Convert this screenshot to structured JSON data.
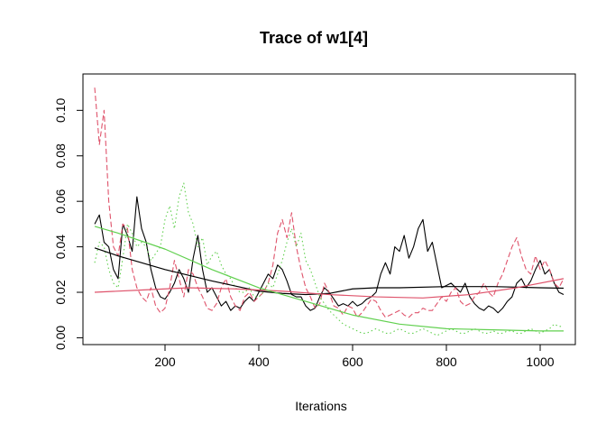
{
  "chart_data": {
    "type": "line",
    "title": "Trace of w1[4]",
    "xlabel": "Iterations",
    "ylabel": "",
    "xlim": [
      25,
      1075
    ],
    "ylim": [
      -0.003,
      0.116
    ],
    "xticks": [
      200,
      400,
      600,
      800,
      1000
    ],
    "xtick_labels": [
      "200",
      "400",
      "600",
      "800",
      "1000"
    ],
    "yticks": [
      0.0,
      0.02,
      0.04,
      0.06,
      0.08,
      0.1
    ],
    "ytick_labels": [
      "0.00",
      "0.02",
      "0.04",
      "0.06",
      "0.08",
      "0.10"
    ],
    "grid": false,
    "legend": "none",
    "colors": {
      "chain1": "#000000",
      "chain2": "#DF536B",
      "chain3": "#61D04F"
    },
    "series": [
      {
        "color": "#000000",
        "style": "solid",
        "x": [
          50,
          60,
          70,
          80,
          90,
          100,
          110,
          120,
          130,
          140,
          150,
          160,
          170,
          180,
          190,
          200,
          210,
          220,
          230,
          240,
          250,
          260,
          270,
          280,
          290,
          300,
          310,
          320,
          330,
          340,
          350,
          360,
          370,
          380,
          390,
          400,
          410,
          420,
          430,
          440,
          450,
          460,
          470,
          480,
          490,
          500,
          510,
          520,
          530,
          540,
          550,
          560,
          570,
          580,
          590,
          600,
          610,
          620,
          630,
          640,
          650,
          660,
          670,
          680,
          690,
          700,
          710,
          720,
          730,
          740,
          750,
          760,
          770,
          780,
          790,
          800,
          810,
          820,
          830,
          840,
          850,
          860,
          870,
          880,
          890,
          900,
          910,
          920,
          930,
          940,
          950,
          960,
          970,
          980,
          990,
          1000,
          1010,
          1020,
          1030,
          1040,
          1050
        ],
        "y": [
          0.05,
          0.054,
          0.042,
          0.04,
          0.03,
          0.026,
          0.05,
          0.045,
          0.038,
          0.062,
          0.048,
          0.042,
          0.03,
          0.022,
          0.018,
          0.017,
          0.02,
          0.024,
          0.03,
          0.026,
          0.02,
          0.035,
          0.045,
          0.03,
          0.02,
          0.022,
          0.018,
          0.014,
          0.016,
          0.012,
          0.014,
          0.013,
          0.016,
          0.018,
          0.016,
          0.02,
          0.024,
          0.028,
          0.026,
          0.032,
          0.03,
          0.025,
          0.019,
          0.018,
          0.018,
          0.014,
          0.012,
          0.013,
          0.018,
          0.022,
          0.02,
          0.017,
          0.014,
          0.015,
          0.014,
          0.016,
          0.014,
          0.015,
          0.017,
          0.018,
          0.02,
          0.028,
          0.033,
          0.028,
          0.04,
          0.038,
          0.045,
          0.035,
          0.04,
          0.048,
          0.052,
          0.038,
          0.042,
          0.032,
          0.022,
          0.023,
          0.024,
          0.022,
          0.02,
          0.024,
          0.018,
          0.015,
          0.013,
          0.012,
          0.014,
          0.013,
          0.011,
          0.013,
          0.016,
          0.018,
          0.024,
          0.026,
          0.022,
          0.025,
          0.03,
          0.034,
          0.028,
          0.03,
          0.024,
          0.02,
          0.019
        ]
      },
      {
        "color": "#DF536B",
        "style": "dashed",
        "x": [
          50,
          60,
          70,
          80,
          90,
          100,
          110,
          120,
          130,
          140,
          150,
          160,
          170,
          180,
          190,
          200,
          210,
          220,
          230,
          240,
          250,
          260,
          270,
          280,
          290,
          300,
          310,
          320,
          330,
          340,
          350,
          360,
          370,
          380,
          390,
          400,
          410,
          420,
          430,
          440,
          450,
          460,
          470,
          480,
          490,
          500,
          510,
          520,
          530,
          540,
          550,
          560,
          570,
          580,
          590,
          600,
          610,
          620,
          630,
          640,
          650,
          660,
          670,
          680,
          690,
          700,
          710,
          720,
          730,
          740,
          750,
          760,
          770,
          780,
          790,
          800,
          810,
          820,
          830,
          840,
          850,
          860,
          870,
          880,
          890,
          900,
          910,
          920,
          930,
          940,
          950,
          960,
          970,
          980,
          990,
          1000,
          1010,
          1020,
          1030,
          1040,
          1050
        ],
        "y": [
          0.11,
          0.085,
          0.1,
          0.06,
          0.04,
          0.036,
          0.05,
          0.048,
          0.03,
          0.022,
          0.018,
          0.016,
          0.022,
          0.014,
          0.011,
          0.013,
          0.022,
          0.034,
          0.026,
          0.018,
          0.03,
          0.028,
          0.022,
          0.018,
          0.013,
          0.012,
          0.015,
          0.022,
          0.026,
          0.018,
          0.014,
          0.012,
          0.018,
          0.02,
          0.016,
          0.018,
          0.02,
          0.024,
          0.032,
          0.046,
          0.052,
          0.044,
          0.055,
          0.04,
          0.03,
          0.022,
          0.018,
          0.013,
          0.015,
          0.024,
          0.02,
          0.014,
          0.013,
          0.01,
          0.014,
          0.013,
          0.009,
          0.011,
          0.014,
          0.017,
          0.016,
          0.012,
          0.009,
          0.01,
          0.011,
          0.012,
          0.01,
          0.009,
          0.011,
          0.011,
          0.013,
          0.012,
          0.012,
          0.015,
          0.018,
          0.016,
          0.02,
          0.022,
          0.016,
          0.014,
          0.015,
          0.018,
          0.02,
          0.024,
          0.02,
          0.018,
          0.024,
          0.028,
          0.034,
          0.04,
          0.044,
          0.036,
          0.03,
          0.028,
          0.036,
          0.03,
          0.034,
          0.03,
          0.024,
          0.022,
          0.026
        ]
      },
      {
        "color": "#61D04F",
        "style": "dotted",
        "x": [
          50,
          60,
          70,
          80,
          90,
          100,
          110,
          120,
          130,
          140,
          150,
          160,
          170,
          180,
          190,
          200,
          210,
          220,
          230,
          240,
          250,
          260,
          270,
          280,
          290,
          300,
          310,
          320,
          330,
          340,
          350,
          360,
          370,
          380,
          390,
          400,
          410,
          420,
          430,
          440,
          450,
          460,
          470,
          480,
          490,
          500,
          510,
          520,
          530,
          540,
          550,
          560,
          570,
          580,
          590,
          600,
          610,
          620,
          630,
          640,
          650,
          660,
          670,
          680,
          690,
          700,
          710,
          720,
          730,
          740,
          750,
          760,
          770,
          780,
          790,
          800,
          810,
          820,
          830,
          840,
          850,
          860,
          870,
          880,
          890,
          900,
          910,
          920,
          930,
          940,
          950,
          960,
          970,
          980,
          990,
          1000,
          1010,
          1020,
          1030,
          1040,
          1050
        ],
        "y": [
          0.033,
          0.042,
          0.04,
          0.03,
          0.024,
          0.022,
          0.035,
          0.05,
          0.046,
          0.04,
          0.042,
          0.04,
          0.034,
          0.037,
          0.04,
          0.052,
          0.058,
          0.048,
          0.062,
          0.068,
          0.055,
          0.05,
          0.04,
          0.044,
          0.032,
          0.036,
          0.038,
          0.032,
          0.028,
          0.026,
          0.022,
          0.02,
          0.02,
          0.022,
          0.018,
          0.018,
          0.02,
          0.024,
          0.022,
          0.028,
          0.034,
          0.042,
          0.048,
          0.04,
          0.046,
          0.034,
          0.03,
          0.024,
          0.018,
          0.015,
          0.012,
          0.01,
          0.008,
          0.006,
          0.005,
          0.004,
          0.003,
          0.002,
          0.002,
          0.003,
          0.004,
          0.003,
          0.002,
          0.002,
          0.003,
          0.004,
          0.003,
          0.002,
          0.002,
          0.003,
          0.004,
          0.003,
          0.002,
          0.001,
          0.002,
          0.003,
          0.004,
          0.003,
          0.002,
          0.002,
          0.003,
          0.004,
          0.003,
          0.002,
          0.002,
          0.003,
          0.002,
          0.002,
          0.003,
          0.003,
          0.002,
          0.002,
          0.003,
          0.004,
          0.003,
          0.002,
          0.003,
          0.004,
          0.006,
          0.005,
          0.005
        ]
      },
      {
        "color": "#000000",
        "style": "solid",
        "role": "smooth",
        "x": [
          50,
          100,
          200,
          300,
          400,
          450,
          500,
          550,
          600,
          650,
          700,
          800,
          900,
          1000,
          1050
        ],
        "y": [
          0.0395,
          0.036,
          0.03,
          0.025,
          0.0205,
          0.0195,
          0.019,
          0.0195,
          0.0215,
          0.022,
          0.022,
          0.0225,
          0.0225,
          0.022,
          0.0218
        ]
      },
      {
        "color": "#DF536B",
        "style": "solid",
        "role": "smooth",
        "x": [
          50,
          150,
          250,
          350,
          450,
          550,
          650,
          750,
          850,
          950,
          1050
        ],
        "y": [
          0.02,
          0.021,
          0.022,
          0.0215,
          0.0205,
          0.019,
          0.018,
          0.0175,
          0.019,
          0.022,
          0.026
        ]
      },
      {
        "color": "#61D04F",
        "style": "solid",
        "role": "smooth",
        "x": [
          50,
          100,
          200,
          300,
          400,
          500,
          600,
          700,
          800,
          900,
          1000,
          1050
        ],
        "y": [
          0.049,
          0.046,
          0.039,
          0.03,
          0.022,
          0.016,
          0.01,
          0.006,
          0.004,
          0.0035,
          0.003,
          0.003
        ]
      }
    ]
  }
}
